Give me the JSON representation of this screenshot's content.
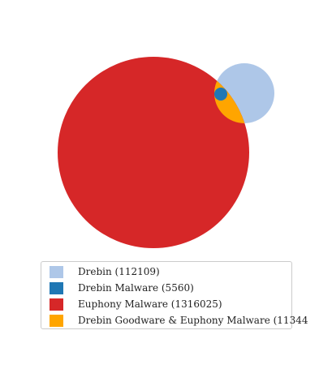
{
  "venn": {
    "sets": [
      {
        "name": "Drebin",
        "count": "112109",
        "color": "#aec7e8"
      },
      {
        "name": "Drebin Malware",
        "count": "5560",
        "color": "#1f77b4"
      },
      {
        "name": "Euphony Malware",
        "count": "1316025",
        "color": "#d62728"
      },
      {
        "name": "Drebin Goodware & Euphony Malware",
        "count": "11344",
        "color": "#ffa500"
      }
    ]
  },
  "legend": {
    "items": [
      {
        "label": "Drebin (112109)",
        "color": "#aec7e8"
      },
      {
        "label": "Drebin Malware (5560)",
        "color": "#1f77b4"
      },
      {
        "label": "Euphony Malware (1316025)",
        "color": "#d62728"
      },
      {
        "label": "Drebin Goodware & Euphony Malware (11344",
        "color": "#ffa500"
      }
    ]
  }
}
